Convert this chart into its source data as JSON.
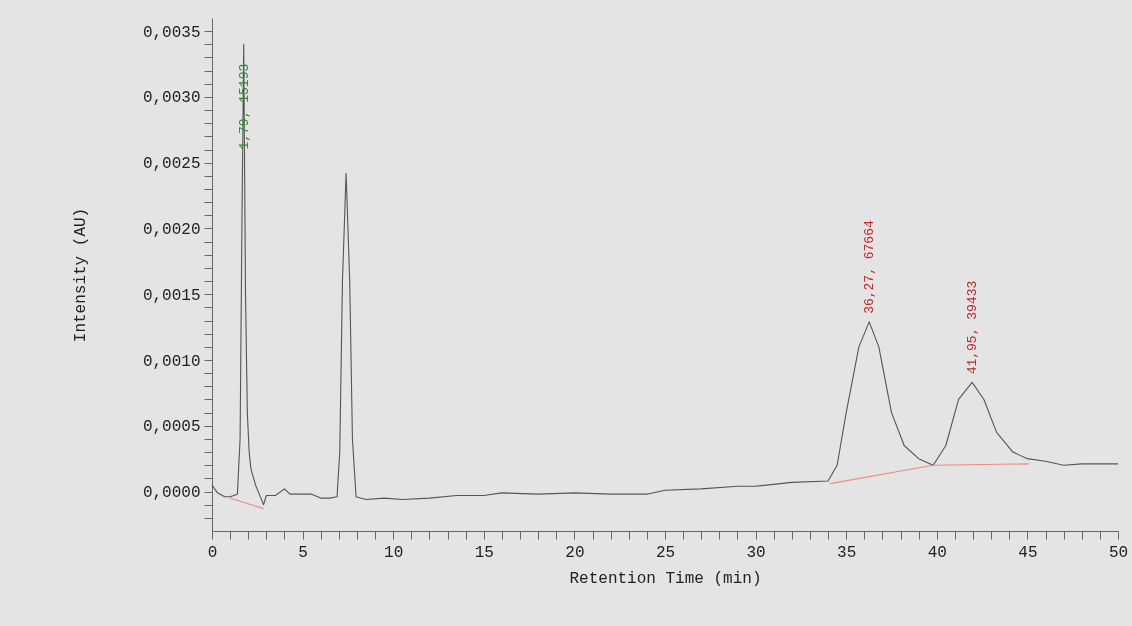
{
  "chart_data": {
    "type": "line",
    "xlabel": "Retention Time (min)",
    "ylabel": "Intensity (AU)",
    "xlim": [
      0,
      50
    ],
    "ylim": [
      -0.0003,
      0.0036
    ],
    "xticks": [
      0,
      {
        "value": 1,
        "label": null
      },
      {
        "value": 2,
        "label": null
      },
      {
        "value": 3,
        "label": null
      },
      {
        "value": 4,
        "label": null
      },
      5,
      {
        "value": 6,
        "label": null
      },
      {
        "value": 7,
        "label": null
      },
      {
        "value": 8,
        "label": null
      },
      {
        "value": 9,
        "label": null
      },
      10,
      {
        "value": 11,
        "label": null
      },
      {
        "value": 12,
        "label": null
      },
      {
        "value": 13,
        "label": null
      },
      {
        "value": 14,
        "label": null
      },
      15,
      {
        "value": 16,
        "label": null
      },
      {
        "value": 17,
        "label": null
      },
      {
        "value": 18,
        "label": null
      },
      {
        "value": 19,
        "label": null
      },
      20,
      {
        "value": 21,
        "label": null
      },
      {
        "value": 22,
        "label": null
      },
      {
        "value": 23,
        "label": null
      },
      {
        "value": 24,
        "label": null
      },
      25,
      {
        "value": 26,
        "label": null
      },
      {
        "value": 27,
        "label": null
      },
      {
        "value": 28,
        "label": null
      },
      {
        "value": 29,
        "label": null
      },
      30,
      {
        "value": 31,
        "label": null
      },
      {
        "value": 32,
        "label": null
      },
      {
        "value": 33,
        "label": null
      },
      {
        "value": 34,
        "label": null
      },
      35,
      {
        "value": 36,
        "label": null
      },
      {
        "value": 37,
        "label": null
      },
      {
        "value": 38,
        "label": null
      },
      {
        "value": 39,
        "label": null
      },
      40,
      {
        "value": 41,
        "label": null
      },
      {
        "value": 42,
        "label": null
      },
      {
        "value": 43,
        "label": null
      },
      {
        "value": 44,
        "label": null
      },
      45,
      {
        "value": 46,
        "label": null
      },
      {
        "value": 47,
        "label": null
      },
      {
        "value": 48,
        "label": null
      },
      {
        "value": 49,
        "label": null
      },
      50
    ],
    "yticks": [
      {
        "value": -0.0002,
        "label": null
      },
      {
        "value": -0.0001,
        "label": null
      },
      {
        "value": 0,
        "label": "0,0000"
      },
      {
        "value": 0.0001,
        "label": null
      },
      {
        "value": 0.0002,
        "label": null
      },
      {
        "value": 0.0003,
        "label": null
      },
      {
        "value": 0.0004,
        "label": null
      },
      {
        "value": 0.0005,
        "label": "0,0005"
      },
      {
        "value": 0.0006,
        "label": null
      },
      {
        "value": 0.0007,
        "label": null
      },
      {
        "value": 0.0008,
        "label": null
      },
      {
        "value": 0.0009,
        "label": null
      },
      {
        "value": 0.001,
        "label": "0,0010"
      },
      {
        "value": 0.0011,
        "label": null
      },
      {
        "value": 0.0012,
        "label": null
      },
      {
        "value": 0.0013,
        "label": null
      },
      {
        "value": 0.0014,
        "label": null
      },
      {
        "value": 0.0015,
        "label": "0,0015"
      },
      {
        "value": 0.0016,
        "label": null
      },
      {
        "value": 0.0017,
        "label": null
      },
      {
        "value": 0.0018,
        "label": null
      },
      {
        "value": 0.0019,
        "label": null
      },
      {
        "value": 0.002,
        "label": "0,0020"
      },
      {
        "value": 0.0021,
        "label": null
      },
      {
        "value": 0.0022,
        "label": null
      },
      {
        "value": 0.0023,
        "label": null
      },
      {
        "value": 0.0024,
        "label": null
      },
      {
        "value": 0.0025,
        "label": "0,0025"
      },
      {
        "value": 0.0026,
        "label": null
      },
      {
        "value": 0.0027,
        "label": null
      },
      {
        "value": 0.0028,
        "label": null
      },
      {
        "value": 0.0029,
        "label": null
      },
      {
        "value": 0.003,
        "label": "0,0030"
      },
      {
        "value": 0.0031,
        "label": null
      },
      {
        "value": 0.0032,
        "label": null
      },
      {
        "value": 0.0033,
        "label": null
      },
      {
        "value": 0.0034,
        "label": null
      },
      {
        "value": 0.0035,
        "label": "0,0035"
      }
    ],
    "marker": "none",
    "series": [
      {
        "color": "#555555",
        "x": [
          0,
          0.3,
          0.7,
          1.0,
          1.4,
          1.55,
          1.65,
          1.75,
          1.85,
          1.95,
          2.05,
          2.15,
          2.4,
          2.7,
          2.85,
          3.0,
          3.5,
          4.0,
          4.3,
          5.0,
          5.5,
          6.0,
          6.5,
          6.9,
          7.05,
          7.2,
          7.4,
          7.6,
          7.75,
          7.95,
          8.5,
          9.5,
          10.5,
          12,
          13.5,
          15,
          16,
          18,
          20,
          22,
          24,
          25,
          27,
          29,
          30,
          32,
          34,
          34.5,
          35,
          35.7,
          36.27,
          36.8,
          37.5,
          38.2,
          39,
          39.8,
          40.5,
          41.2,
          41.95,
          42.6,
          43.3,
          44.2,
          45,
          46,
          47,
          48,
          50
        ],
        "values": [
          5e-05,
          -1e-05,
          -4e-05,
          -4e-05,
          -2e-05,
          0.0004,
          0.002,
          0.0034,
          0.0015,
          0.0006,
          0.0003,
          0.00017,
          5e-05,
          -5e-05,
          -0.0001,
          -3e-05,
          -3e-05,
          2e-05,
          -2e-05,
          -2e-05,
          -2e-05,
          -5e-05,
          -5e-05,
          -4e-05,
          0.0003,
          0.0016,
          0.00242,
          0.0016,
          0.0004,
          -4e-05,
          -6e-05,
          -5e-05,
          -6e-05,
          -5e-05,
          -3e-05,
          -3e-05,
          -1e-05,
          -2e-05,
          -1e-05,
          -2e-05,
          -2e-05,
          1e-05,
          2e-05,
          4e-05,
          4e-05,
          7e-05,
          8e-05,
          0.0002,
          0.0006,
          0.0011,
          0.00129,
          0.0011,
          0.0006,
          0.00035,
          0.00025,
          0.0002,
          0.00035,
          0.0007,
          0.00083,
          0.0007,
          0.00045,
          0.0003,
          0.00025,
          0.00023,
          0.0002,
          0.00021,
          0.00021
        ]
      },
      {
        "color": "#f08a84",
        "x": [
          1.0,
          2.85
        ],
        "values": [
          -5e-05,
          -0.00013
        ]
      },
      {
        "color": "#f08a84",
        "x": [
          34.1,
          39.8,
          45.1
        ],
        "values": [
          6e-05,
          0.0002,
          0.00021
        ]
      }
    ],
    "annotations": [
      {
        "text": "1,79, 15193",
        "x": 1.79,
        "y": 0.0026
      },
      {
        "text": "36,27, 67664",
        "x": 36.27,
        "y": 0.00129
      },
      {
        "text": "41,95, 39433",
        "x": 41.95,
        "y": 0.00083
      }
    ]
  }
}
